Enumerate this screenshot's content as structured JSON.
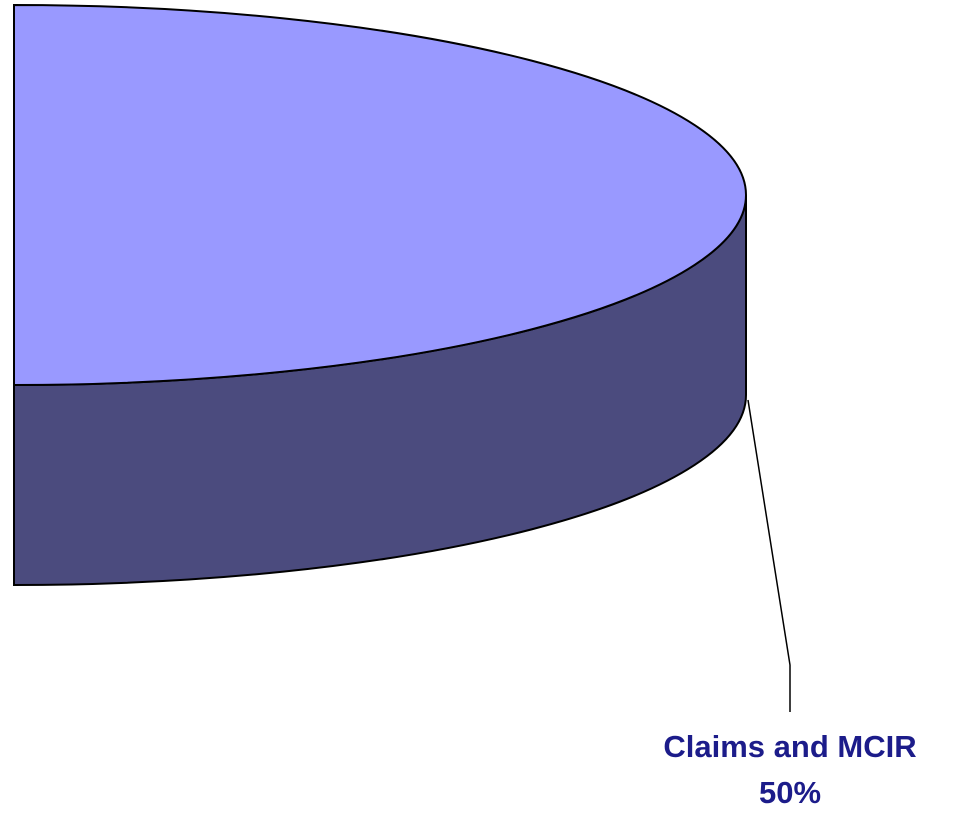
{
  "chart_data": {
    "type": "pie",
    "categories": [
      "Claims and MCIR"
    ],
    "values": [
      50
    ],
    "value_labels": [
      "50%"
    ],
    "colors": [
      "#9999ff"
    ],
    "side_colors": [
      "#4b4b7e"
    ],
    "label_color": "#1c1c8a"
  }
}
